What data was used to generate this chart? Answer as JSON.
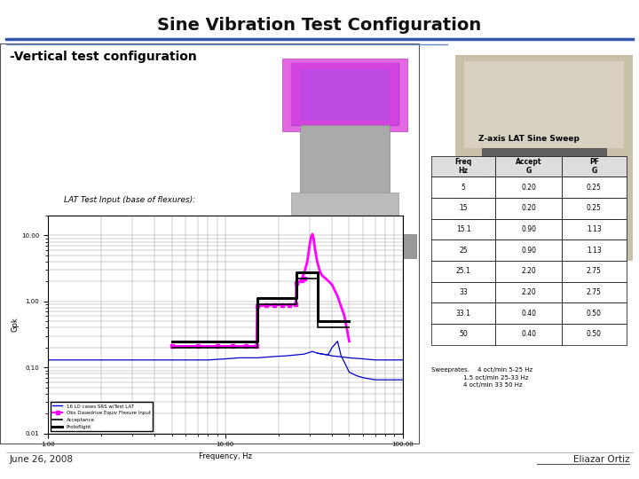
{
  "title": "Sine Vibration Test Configuration",
  "subtitle": "-Vertical test configuration",
  "date": "June 26, 2008",
  "author": "Eliazar Ortiz",
  "chart_title": "LAT Test Input (base of flexures):",
  "chart_xlabel": "Frequency, Hz",
  "chart_ylabel": "Gpk",
  "table_title": "Z-axis LAT Sine Sweep",
  "table_headers": [
    "Freq\nHz",
    "Accept\nG",
    "PF\nG"
  ],
  "table_data": [
    [
      "5",
      "0.20",
      "0.25"
    ],
    [
      "15",
      "0.20",
      "0.25"
    ],
    [
      "15.1",
      "0.90",
      "1.13"
    ],
    [
      "25",
      "0.90",
      "1.13"
    ],
    [
      "25.1",
      "2.20",
      "2.75"
    ],
    [
      "33",
      "2.20",
      "2.75"
    ],
    [
      "33.1",
      "0.40",
      "0.50"
    ],
    [
      "50",
      "0.40",
      "0.50"
    ]
  ],
  "sweep_text": "Sweeprates.    4 oct/min 5-25 Hz\n                1.5 oct/min 25-33 Hz\n                4 oct/min 33 50 Hz",
  "title_color": "#111111",
  "blue_line_color1": "#3355aa",
  "blue_line_color2": "#6688cc",
  "background_color": "#ffffff",
  "acceptance_steps": [
    [
      5,
      0.2
    ],
    [
      15,
      0.2
    ],
    [
      15.1,
      0.9
    ],
    [
      25,
      0.9
    ],
    [
      25.1,
      2.2
    ],
    [
      33,
      2.2
    ],
    [
      33.1,
      0.4
    ],
    [
      50,
      0.4
    ]
  ],
  "protoflight_steps": [
    [
      5,
      0.25
    ],
    [
      15,
      0.25
    ],
    [
      15.1,
      1.13
    ],
    [
      25,
      1.13
    ],
    [
      25.1,
      2.75
    ],
    [
      33,
      2.75
    ],
    [
      33.1,
      0.5
    ],
    [
      50,
      0.5
    ]
  ],
  "legend_labels": [
    "16 LO cases SRS w/Test LAT",
    "Obs Dasedrive Equiv Flexure Input",
    "Acceptance",
    "Protoflight"
  ],
  "photo1_colors": [
    "#cccccc",
    "#aaaacc",
    "#8899bb"
  ],
  "photo2_colors": [
    "#bbbbaa",
    "#aaa999",
    "#888877"
  ],
  "yticks": [
    0.01,
    0.1,
    1.0,
    10.0
  ],
  "ytick_labels": [
    "0.01",
    "0.10",
    "1.00",
    "10.00"
  ],
  "xticks": [
    1.0,
    10.0,
    100.0
  ],
  "xtick_labels": [
    "1.00",
    "10.00",
    "100.00"
  ]
}
